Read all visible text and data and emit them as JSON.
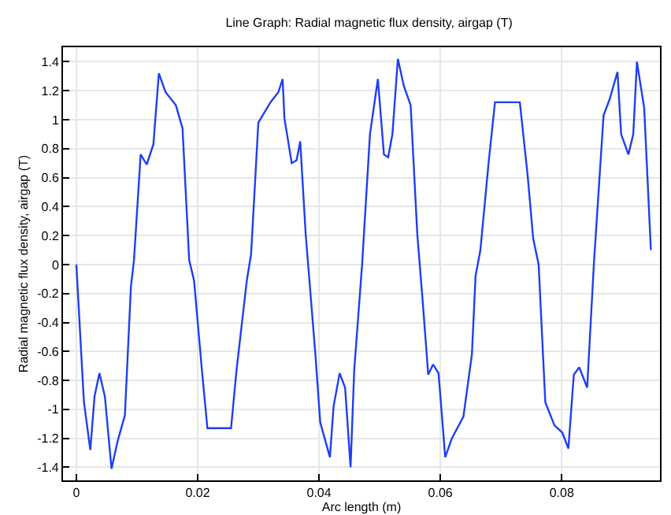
{
  "chart_data": {
    "type": "line",
    "title": "Line Graph: Radial magnetic flux density, airgap (T)",
    "xlabel": "Arc length (m)",
    "ylabel": "Radial magnetic flux density, airgap (T)",
    "xlim": [
      -0.0022,
      0.0962
    ],
    "ylim": [
      -1.49,
      1.5
    ],
    "xticks": [
      0,
      0.02,
      0.04,
      0.06,
      0.08
    ],
    "yticks": [
      -1.4,
      -1.2,
      -1,
      -0.8,
      -0.6,
      -0.4,
      -0.2,
      0,
      0.2,
      0.4,
      0.6,
      0.8,
      1,
      1.2,
      1.4
    ],
    "grid": true,
    "marker": "none",
    "line_style": "solid",
    "series": [
      {
        "color": "#1f3ff0",
        "x": [
          0,
          0.00125,
          0.0023,
          0.003,
          0.0038,
          0.0047,
          0.0058,
          0.0068,
          0.008,
          0.009,
          0.0095,
          0.0106,
          0.0116,
          0.0127,
          0.0136,
          0.0147,
          0.0164,
          0.0175,
          0.0186,
          0.0194,
          0.0207,
          0.0216,
          0.0255,
          0.0264,
          0.0281,
          0.0288,
          0.03,
          0.032,
          0.0333,
          0.034,
          0.0343,
          0.0355,
          0.0363,
          0.0369,
          0.0378,
          0.0394,
          0.0402,
          0.0418,
          0.0424,
          0.0434,
          0.0443,
          0.0452,
          0.0458,
          0.0471,
          0.0484,
          0.0497,
          0.0507,
          0.0514,
          0.0521,
          0.053,
          0.054,
          0.0551,
          0.0562,
          0.0571,
          0.058,
          0.0588,
          0.0597,
          0.0608,
          0.0619,
          0.0638,
          0.0652,
          0.0658,
          0.0666,
          0.0679,
          0.069,
          0.0731,
          0.0744,
          0.0753,
          0.0762,
          0.0773,
          0.0788,
          0.0801,
          0.0811,
          0.082,
          0.0829,
          0.0842,
          0.0853,
          0.0869,
          0.0879,
          0.0892,
          0.0898,
          0.091,
          0.0918,
          0.0924,
          0.0936,
          0.0947
        ],
        "values": [
          0,
          -0.95,
          -1.28,
          -0.91,
          -0.75,
          -0.91,
          -1.41,
          -1.22,
          -1.04,
          -0.15,
          0.03,
          0.76,
          0.69,
          0.83,
          1.32,
          1.19,
          1.1,
          0.94,
          0.03,
          -0.11,
          -0.73,
          -1.13,
          -1.13,
          -0.73,
          -0.11,
          0.07,
          0.98,
          1.12,
          1.19,
          1.28,
          1.01,
          0.7,
          0.72,
          0.85,
          0.21,
          -0.62,
          -1.09,
          -1.33,
          -0.98,
          -0.75,
          -0.85,
          -1.4,
          -0.73,
          0,
          0.9,
          1.28,
          0.76,
          0.74,
          0.9,
          1.42,
          1.23,
          1.1,
          0.21,
          -0.26,
          -0.76,
          -0.69,
          -0.75,
          -1.33,
          -1.2,
          -1.05,
          -0.62,
          -0.08,
          0.1,
          0.68,
          1.12,
          1.12,
          0.61,
          0.18,
          0,
          -0.95,
          -1.11,
          -1.16,
          -1.27,
          -0.76,
          -0.71,
          -0.85,
          0,
          1.03,
          1.14,
          1.33,
          0.9,
          0.76,
          0.9,
          1.4,
          1.08,
          0.1
        ]
      }
    ]
  }
}
